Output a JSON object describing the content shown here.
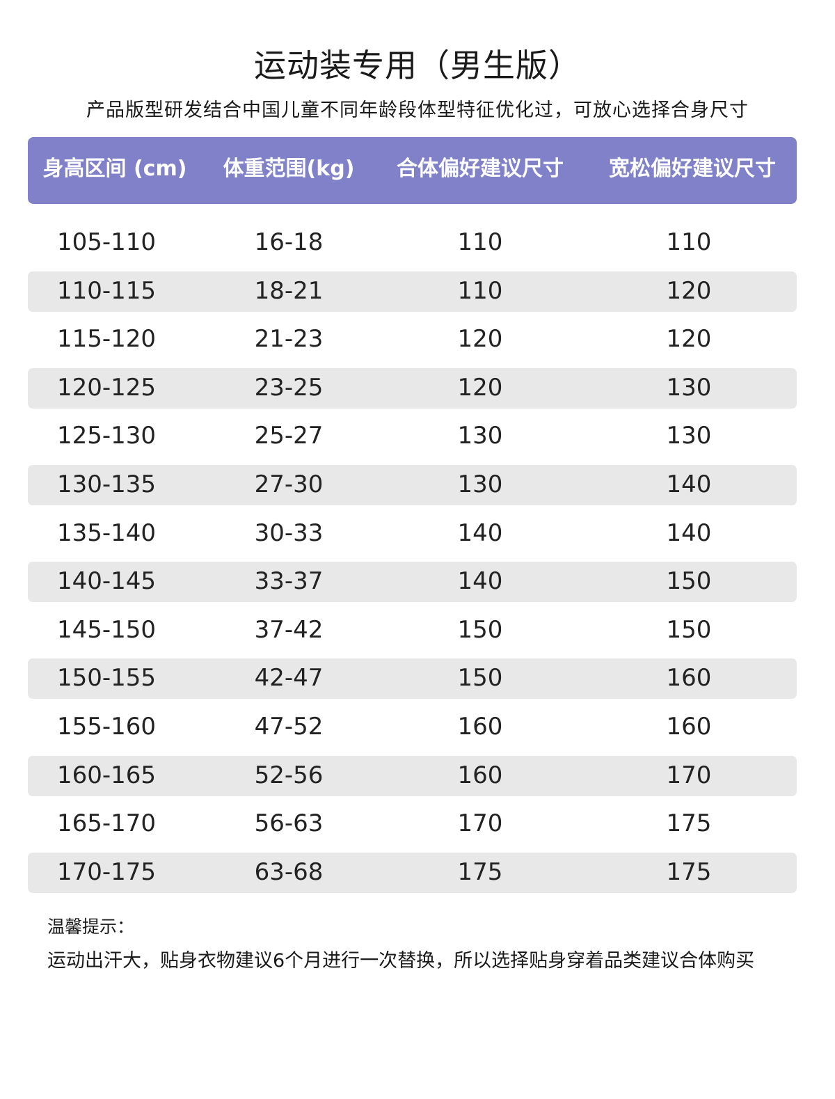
{
  "title": "运动装专用（男生版）",
  "subtitle": "产品版型研发结合中国儿童不同年龄段体型特征优化过，可放心选择合身尺寸",
  "colors": {
    "header_bg": "#8181c9",
    "row_shade": "#e8e8e8"
  },
  "table": {
    "headers": [
      "身高区间 (cm)",
      "体重范围(kg)",
      "合体偏好建议尺寸",
      "宽松偏好建议尺寸"
    ],
    "rows": [
      [
        "105-110",
        "16-18",
        "110",
        "110"
      ],
      [
        "110-115",
        "18-21",
        "110",
        "120"
      ],
      [
        "115-120",
        "21-23",
        "120",
        "120"
      ],
      [
        "120-125",
        "23-25",
        "120",
        "130"
      ],
      [
        "125-130",
        "25-27",
        "130",
        "130"
      ],
      [
        "130-135",
        "27-30",
        "130",
        "140"
      ],
      [
        "135-140",
        "30-33",
        "140",
        "140"
      ],
      [
        "140-145",
        "33-37",
        "140",
        "150"
      ],
      [
        "145-150",
        "37-42",
        "150",
        "150"
      ],
      [
        "150-155",
        "42-47",
        "150",
        "160"
      ],
      [
        "155-160",
        "47-52",
        "160",
        "160"
      ],
      [
        "160-165",
        "52-56",
        "160",
        "170"
      ],
      [
        "165-170",
        "56-63",
        "170",
        "175"
      ],
      [
        "170-175",
        "63-68",
        "175",
        "175"
      ]
    ]
  },
  "tip": {
    "label": "温馨提示：",
    "text": "运动出汗大，贴身衣物建议6个月进行一次替换，所以选择贴身穿着品类建议合体购买"
  }
}
